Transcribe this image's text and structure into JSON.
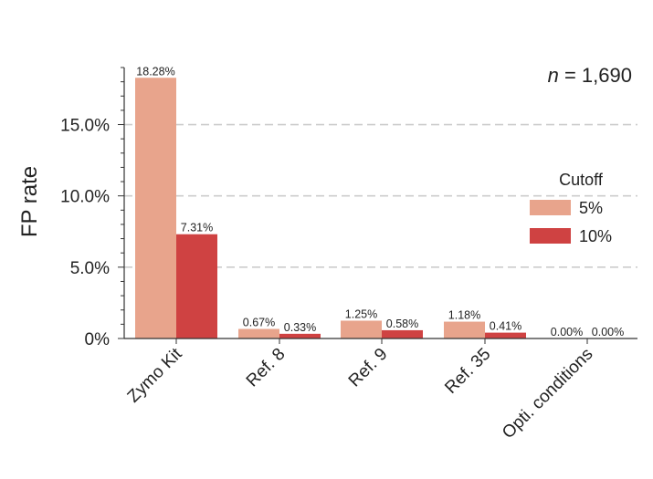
{
  "chart_data": {
    "type": "bar",
    "categories": [
      "Zymo Kit",
      "Ref. 8",
      "Ref. 9",
      "Ref. 35",
      "Opti. conditions"
    ],
    "series": [
      {
        "name": "5%",
        "values": [
          18.28,
          0.67,
          1.25,
          1.18,
          0.0
        ],
        "labels": [
          "18.28%",
          "0.67%",
          "1.25%",
          "1.18%",
          "0.00%"
        ],
        "color": "#E8A48C"
      },
      {
        "name": "10%",
        "values": [
          7.31,
          0.33,
          0.58,
          0.41,
          0.0
        ],
        "labels": [
          "7.31%",
          "0.33%",
          "0.58%",
          "0.41%",
          "0.00%"
        ],
        "color": "#CF4242"
      }
    ],
    "ylabel": "FP rate",
    "xlabel": "",
    "ylim": [
      0,
      19
    ],
    "yticks": [
      0,
      5,
      10,
      15
    ],
    "ytick_labels": [
      "0%",
      "5.0%",
      "10.0%",
      "15.0%"
    ],
    "grid": "horizontal-dashed",
    "legend": {
      "title": "Cutoff",
      "placement": "right"
    },
    "annotation": {
      "italic": "n",
      "text": " = 1,690"
    }
  }
}
